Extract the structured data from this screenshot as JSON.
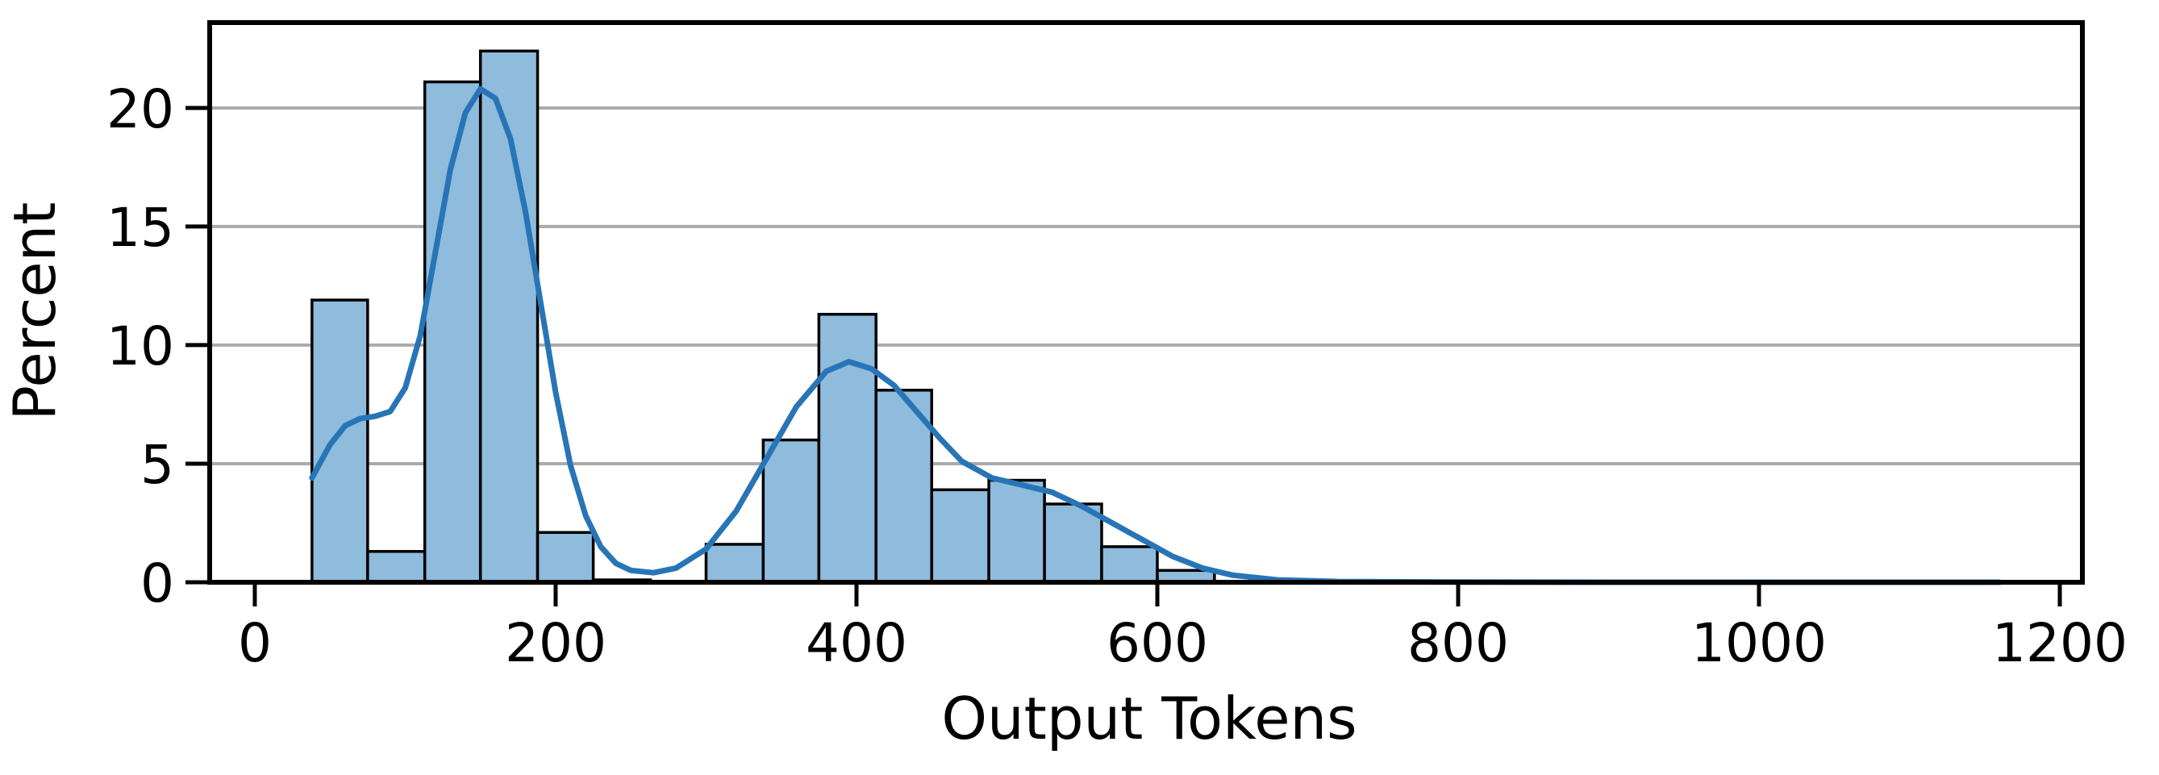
{
  "chart_data": {
    "type": "histogram",
    "title": "",
    "xlabel": "Output Tokens",
    "ylabel": "Percent",
    "xlim": [
      -30,
      1215
    ],
    "ylim": [
      0,
      23.6
    ],
    "xticks": [
      0,
      200,
      400,
      600,
      800,
      1000,
      1200
    ],
    "yticks": [
      0,
      5,
      10,
      15,
      20
    ],
    "grid": "y",
    "bar_color": "#8fbbdc",
    "bar_edge_color": "#000000",
    "kde_color": "#2775b6",
    "bins": [
      {
        "x0": 38,
        "x1": 75,
        "value": 11.9
      },
      {
        "x0": 75,
        "x1": 113,
        "value": 1.3
      },
      {
        "x0": 113,
        "x1": 150,
        "value": 21.1
      },
      {
        "x0": 150,
        "x1": 188,
        "value": 22.4
      },
      {
        "x0": 188,
        "x1": 225,
        "value": 2.1
      },
      {
        "x0": 225,
        "x1": 263,
        "value": 0.1
      },
      {
        "x0": 263,
        "x1": 300,
        "value": 0.0
      },
      {
        "x0": 300,
        "x1": 338,
        "value": 1.6
      },
      {
        "x0": 338,
        "x1": 375,
        "value": 6.0
      },
      {
        "x0": 375,
        "x1": 413,
        "value": 11.3
      },
      {
        "x0": 413,
        "x1": 450,
        "value": 8.1
      },
      {
        "x0": 450,
        "x1": 488,
        "value": 3.9
      },
      {
        "x0": 488,
        "x1": 525,
        "value": 4.3
      },
      {
        "x0": 525,
        "x1": 563,
        "value": 3.3
      },
      {
        "x0": 563,
        "x1": 600,
        "value": 1.5
      },
      {
        "x0": 600,
        "x1": 638,
        "value": 0.5
      }
    ],
    "kde": {
      "x": [
        38,
        50,
        60,
        70,
        80,
        90,
        100,
        110,
        120,
        130,
        140,
        150,
        160,
        170,
        180,
        190,
        200,
        210,
        220,
        230,
        240,
        250,
        265,
        280,
        300,
        320,
        340,
        360,
        380,
        395,
        410,
        425,
        440,
        455,
        470,
        490,
        510,
        530,
        550,
        570,
        590,
        610,
        630,
        650,
        680,
        720,
        800,
        900,
        1000,
        1160
      ],
      "y": [
        4.4,
        5.8,
        6.6,
        6.9,
        7.0,
        7.2,
        8.2,
        10.4,
        13.9,
        17.4,
        19.8,
        20.8,
        20.4,
        18.7,
        15.6,
        11.8,
        8.0,
        4.9,
        2.8,
        1.5,
        0.8,
        0.5,
        0.4,
        0.6,
        1.4,
        3.0,
        5.2,
        7.4,
        8.9,
        9.3,
        9.0,
        8.3,
        7.2,
        6.1,
        5.1,
        4.4,
        4.1,
        3.8,
        3.2,
        2.5,
        1.8,
        1.1,
        0.6,
        0.3,
        0.1,
        0.03,
        0.01,
        0.0,
        0.0,
        0.0
      ]
    }
  }
}
